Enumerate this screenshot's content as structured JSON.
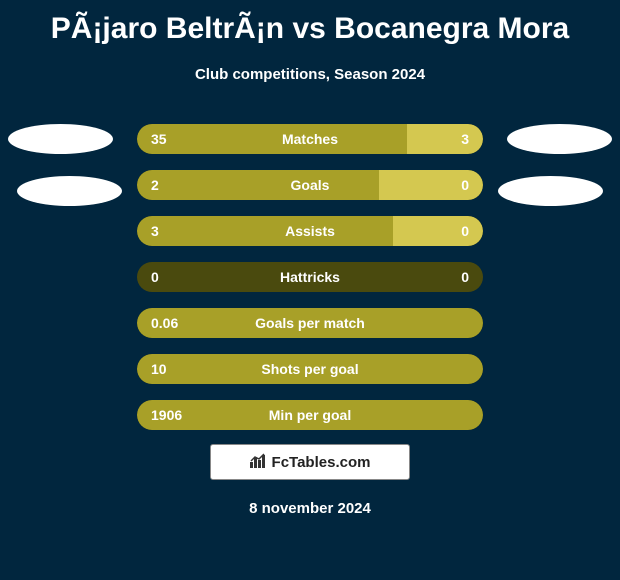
{
  "title": "PÃ¡jaro BeltrÃ¡n vs Bocanegra Mora",
  "subtitle": "Club competitions, Season 2024",
  "colors": {
    "background": "#01263e",
    "text": "#ffffff",
    "bar_base": "#4a4a0e",
    "bar_left": "#a8a028",
    "bar_right": "#d4c850",
    "badge": "#ffffff"
  },
  "stats": [
    {
      "label": "Matches",
      "left_value": "35",
      "right_value": "3",
      "left_width": 78,
      "right_width": 22,
      "show_right_bar": true
    },
    {
      "label": "Goals",
      "left_value": "2",
      "right_value": "0",
      "left_width": 70,
      "right_width": 30,
      "show_right_bar": true
    },
    {
      "label": "Assists",
      "left_value": "3",
      "right_value": "0",
      "left_width": 74,
      "right_width": 26,
      "show_right_bar": true
    },
    {
      "label": "Hattricks",
      "left_value": "0",
      "right_value": "0",
      "left_width": 0,
      "right_width": 0,
      "show_right_bar": false
    },
    {
      "label": "Goals per match",
      "left_value": "0.06",
      "right_value": "",
      "left_width": 100,
      "right_width": 0,
      "show_right_bar": false
    },
    {
      "label": "Shots per goal",
      "left_value": "10",
      "right_value": "",
      "left_width": 100,
      "right_width": 0,
      "show_right_bar": false
    },
    {
      "label": "Min per goal",
      "left_value": "1906",
      "right_value": "",
      "left_width": 100,
      "right_width": 0,
      "show_right_bar": false
    }
  ],
  "watermark": "FcTables.com",
  "date": "8 november 2024"
}
